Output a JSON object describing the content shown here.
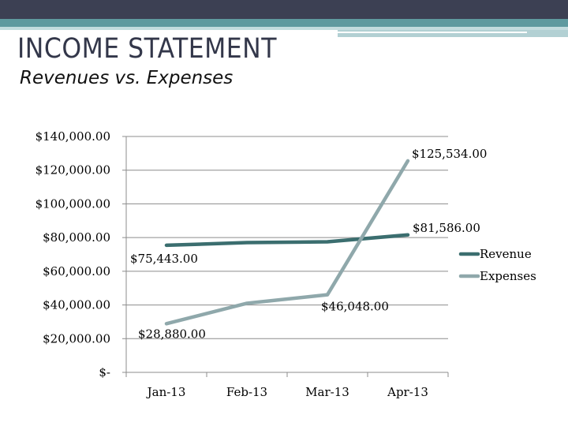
{
  "slide": {
    "title": "INCOME STATEMENT",
    "subtitle": "Revenues vs. Expenses"
  },
  "chart_data": {
    "type": "line",
    "categories": [
      "Jan-13",
      "Feb-13",
      "Mar-13",
      "Apr-13"
    ],
    "ylim": [
      0,
      140000
    ],
    "yticks": [
      0,
      20000,
      40000,
      60000,
      80000,
      100000,
      120000,
      140000
    ],
    "ytick_labels": [
      "$-",
      "$20,000.00",
      "$40,000.00",
      "$60,000.00",
      "$80,000.00",
      "$100,000.00",
      "$120,000.00",
      "$140,000.00"
    ],
    "grid": true,
    "legend_position": "right",
    "series": [
      {
        "name": "Revenue",
        "color": "#3b6e6f",
        "values": [
          75443,
          77000,
          77500,
          81586
        ],
        "data_labels": [
          "$75,443.00",
          "",
          "",
          "$81,586.00"
        ]
      },
      {
        "name": "Expenses",
        "color": "#8fa8ab",
        "values": [
          28880,
          41000,
          46048,
          125534
        ],
        "data_labels": [
          "$28,880.00",
          "",
          "$46,048.00",
          "$125,534.00"
        ]
      }
    ]
  }
}
